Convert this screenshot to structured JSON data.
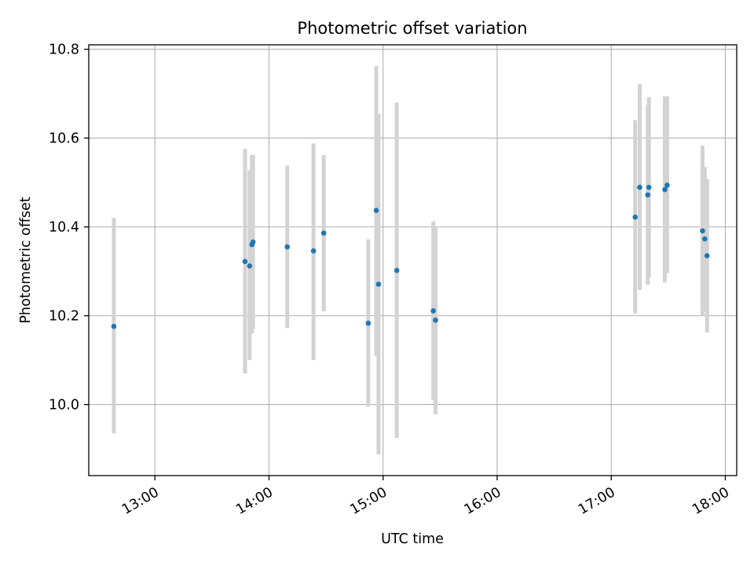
{
  "chart_data": {
    "type": "scatter",
    "title": "Photometric offset variation",
    "xlabel": "UTC time",
    "ylabel": "Photometric offset",
    "grid": true,
    "xlim": [
      12.42,
      18.1
    ],
    "ylim": [
      9.84,
      10.81
    ],
    "x_ticks": [
      {
        "value": 13,
        "label": "13:00"
      },
      {
        "value": 14,
        "label": "14:00"
      },
      {
        "value": 15,
        "label": "15:00"
      },
      {
        "value": 16,
        "label": "16:00"
      },
      {
        "value": 17,
        "label": "17:00"
      },
      {
        "value": 18,
        "label": "18:00"
      }
    ],
    "y_ticks": [
      {
        "value": 10.0,
        "label": "10.0"
      },
      {
        "value": 10.2,
        "label": "10.2"
      },
      {
        "value": 10.4,
        "label": "10.4"
      },
      {
        "value": 10.6,
        "label": "10.6"
      },
      {
        "value": 10.8,
        "label": "10.8"
      }
    ],
    "colors": {
      "point": "#1f77b4",
      "errorbar": "#d3d3d3",
      "grid": "#b0b0b0"
    },
    "points": [
      {
        "x": 12.64,
        "y": 10.176,
        "low": 9.935,
        "high": 10.42
      },
      {
        "x": 13.79,
        "y": 10.322,
        "low": 10.07,
        "high": 10.576
      },
      {
        "x": 13.83,
        "y": 10.312,
        "low": 10.1,
        "high": 10.528
      },
      {
        "x": 13.85,
        "y": 10.36,
        "low": 10.16,
        "high": 10.562
      },
      {
        "x": 13.86,
        "y": 10.366,
        "low": 10.17,
        "high": 10.562
      },
      {
        "x": 14.16,
        "y": 10.355,
        "low": 10.172,
        "high": 10.538
      },
      {
        "x": 14.39,
        "y": 10.346,
        "low": 10.1,
        "high": 10.588
      },
      {
        "x": 14.48,
        "y": 10.386,
        "low": 10.21,
        "high": 10.562
      },
      {
        "x": 14.87,
        "y": 10.183,
        "low": 9.995,
        "high": 10.372
      },
      {
        "x": 14.94,
        "y": 10.437,
        "low": 10.11,
        "high": 10.762
      },
      {
        "x": 14.96,
        "y": 10.271,
        "low": 9.888,
        "high": 10.654
      },
      {
        "x": 15.12,
        "y": 10.302,
        "low": 9.925,
        "high": 10.68
      },
      {
        "x": 15.44,
        "y": 10.211,
        "low": 10.01,
        "high": 10.412
      },
      {
        "x": 15.46,
        "y": 10.19,
        "low": 9.978,
        "high": 10.402
      },
      {
        "x": 17.21,
        "y": 10.422,
        "low": 10.205,
        "high": 10.64
      },
      {
        "x": 17.25,
        "y": 10.489,
        "low": 10.258,
        "high": 10.722
      },
      {
        "x": 17.32,
        "y": 10.472,
        "low": 10.27,
        "high": 10.675
      },
      {
        "x": 17.33,
        "y": 10.489,
        "low": 10.286,
        "high": 10.692
      },
      {
        "x": 17.47,
        "y": 10.484,
        "low": 10.275,
        "high": 10.694
      },
      {
        "x": 17.49,
        "y": 10.494,
        "low": 10.296,
        "high": 10.694
      },
      {
        "x": 17.8,
        "y": 10.391,
        "low": 10.2,
        "high": 10.583
      },
      {
        "x": 17.82,
        "y": 10.373,
        "low": 10.21,
        "high": 10.535
      },
      {
        "x": 17.84,
        "y": 10.335,
        "low": 10.162,
        "high": 10.508
      }
    ]
  }
}
